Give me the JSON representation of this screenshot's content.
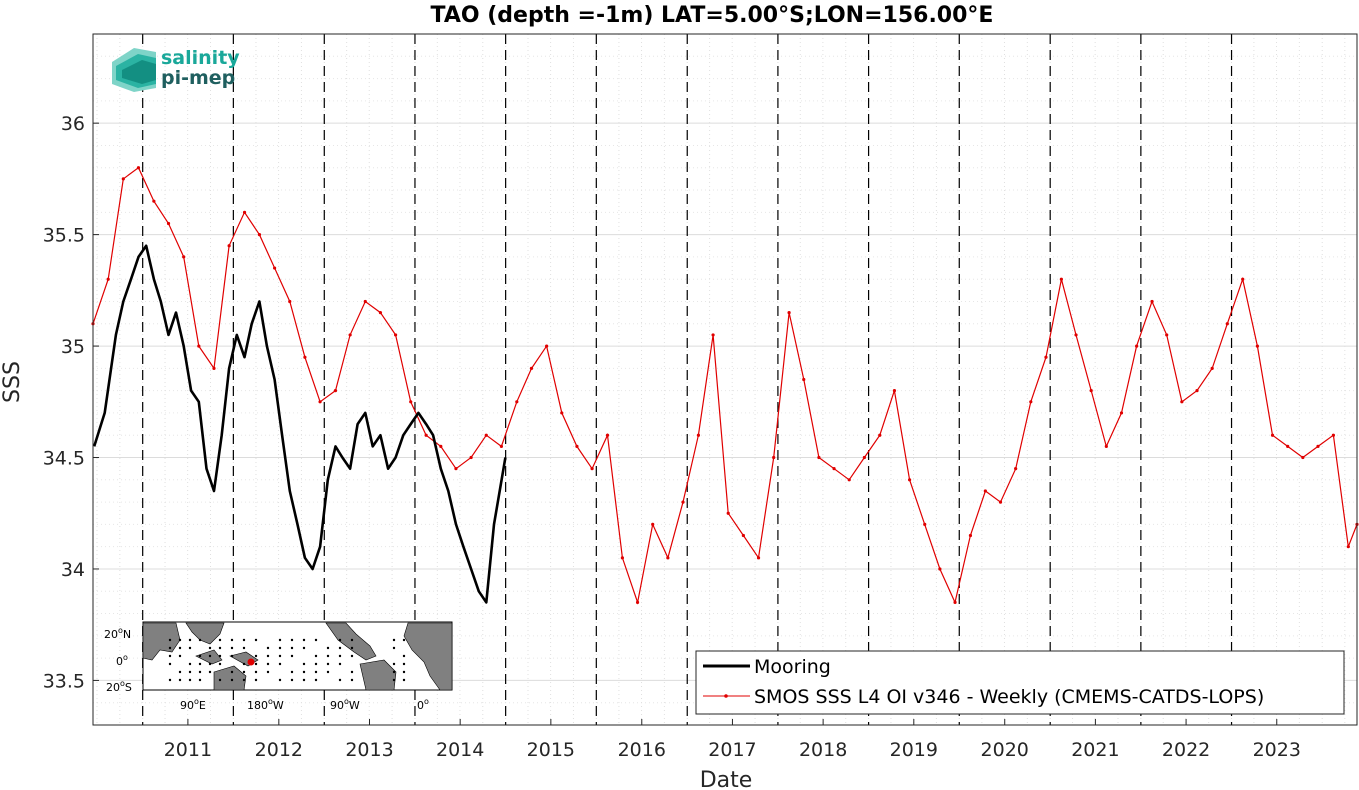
{
  "chart_data": {
    "type": "line",
    "title": "TAO (depth =-1m) LAT=5.00°S;LON=156.00°E",
    "xlabel": "Date",
    "ylabel": "SSS",
    "xlim": [
      "2010-06-15",
      "2024-05-20"
    ],
    "ylim": [
      33.3,
      36.4
    ],
    "x_ticks": [
      "2011",
      "2012",
      "2013",
      "2014",
      "2015",
      "2016",
      "2017",
      "2018",
      "2019",
      "2020",
      "2021",
      "2022",
      "2023"
    ],
    "y_ticks": [
      "33.5",
      "34",
      "34.5",
      "35",
      "35.5",
      "36"
    ],
    "year_boundaries": [
      "2011-01-01",
      "2012-01-01",
      "2013-01-01",
      "2014-01-01",
      "2015-01-01",
      "2016-01-01",
      "2017-01-01",
      "2018-01-01",
      "2019-01-01",
      "2020-01-01",
      "2021-01-01",
      "2022-01-01",
      "2023-01-01"
    ],
    "grid": true,
    "legend_position": "bottom-right",
    "series": [
      {
        "name": "Mooring",
        "color": "#000000",
        "x": [
          "2010-06-20",
          "2010-08-01",
          "2010-09-15",
          "2010-10-15",
          "2010-11-15",
          "2010-12-15",
          "2011-01-15",
          "2011-02-15",
          "2011-03-15",
          "2011-04-15",
          "2011-05-15",
          "2011-06-15",
          "2011-07-15",
          "2011-08-15",
          "2011-09-15",
          "2011-10-15",
          "2011-11-15",
          "2011-12-15",
          "2012-01-15",
          "2012-02-15",
          "2012-03-15",
          "2012-04-15",
          "2012-05-15",
          "2012-06-15",
          "2012-07-15",
          "2012-08-15",
          "2012-09-15",
          "2012-10-15",
          "2012-11-15",
          "2012-12-15",
          "2013-01-15",
          "2013-02-15",
          "2013-03-15",
          "2013-04-15",
          "2013-05-15",
          "2013-06-15",
          "2013-07-15",
          "2013-08-15",
          "2013-09-15",
          "2013-10-15",
          "2013-11-15",
          "2013-12-15",
          "2014-01-15",
          "2014-02-15",
          "2014-03-15",
          "2014-04-15",
          "2014-05-15",
          "2014-06-15",
          "2014-07-15",
          "2014-08-15",
          "2014-09-15",
          "2014-10-15",
          "2014-11-15",
          "2014-12-31"
        ],
        "y": [
          34.55,
          34.7,
          35.05,
          35.2,
          35.3,
          35.4,
          35.45,
          35.3,
          35.2,
          35.05,
          35.15,
          35.0,
          34.8,
          34.75,
          34.45,
          34.35,
          34.6,
          34.9,
          35.05,
          34.95,
          35.1,
          35.2,
          35.0,
          34.85,
          34.6,
          34.35,
          34.2,
          34.05,
          34.0,
          34.1,
          34.4,
          34.55,
          34.5,
          34.45,
          34.65,
          34.7,
          34.55,
          34.6,
          34.45,
          34.5,
          34.6,
          34.65,
          34.7,
          34.65,
          34.6,
          34.45,
          34.35,
          34.2,
          34.1,
          34.0,
          33.9,
          33.85,
          34.2,
          34.5
        ]
      },
      {
        "name": "SMOS SSS L4 OI v346 - Weekly (CMEMS-CATDS-LOPS)",
        "color": "#e00000",
        "x": [
          "2010-06-15",
          "2010-08-15",
          "2010-10-15",
          "2010-12-15",
          "2011-02-15",
          "2011-04-15",
          "2011-06-15",
          "2011-08-15",
          "2011-10-15",
          "2011-12-15",
          "2012-02-15",
          "2012-04-15",
          "2012-06-15",
          "2012-08-15",
          "2012-10-15",
          "2012-12-15",
          "2013-02-15",
          "2013-04-15",
          "2013-06-15",
          "2013-08-15",
          "2013-10-15",
          "2013-12-15",
          "2014-02-15",
          "2014-04-15",
          "2014-06-15",
          "2014-08-15",
          "2014-10-15",
          "2014-12-15",
          "2015-02-15",
          "2015-04-15",
          "2015-06-15",
          "2015-08-15",
          "2015-10-15",
          "2015-12-15",
          "2016-02-15",
          "2016-04-15",
          "2016-06-15",
          "2016-08-15",
          "2016-10-15",
          "2016-12-15",
          "2017-02-15",
          "2017-04-15",
          "2017-06-15",
          "2017-08-15",
          "2017-10-15",
          "2017-12-15",
          "2018-02-15",
          "2018-04-15",
          "2018-06-15",
          "2018-08-15",
          "2018-10-15",
          "2018-12-15",
          "2019-02-15",
          "2019-04-15",
          "2019-06-15",
          "2019-08-15",
          "2019-10-15",
          "2019-12-15",
          "2020-02-15",
          "2020-04-15",
          "2020-06-15",
          "2020-08-15",
          "2020-10-15",
          "2020-12-15",
          "2021-02-15",
          "2021-04-15",
          "2021-06-15",
          "2021-08-15",
          "2021-10-15",
          "2021-12-15",
          "2022-02-15",
          "2022-04-15",
          "2022-06-15",
          "2022-08-15",
          "2022-10-15",
          "2022-12-15",
          "2023-02-15",
          "2023-04-15",
          "2023-06-15",
          "2023-08-15",
          "2023-10-15",
          "2023-12-15",
          "2024-02-15",
          "2024-04-15",
          "2024-05-20"
        ],
        "y": [
          35.1,
          35.3,
          35.75,
          35.8,
          35.65,
          35.55,
          35.4,
          35.0,
          34.9,
          35.45,
          35.6,
          35.5,
          35.35,
          35.2,
          34.95,
          34.75,
          34.8,
          35.05,
          35.2,
          35.15,
          35.05,
          34.75,
          34.6,
          34.55,
          34.45,
          34.5,
          34.6,
          34.55,
          34.75,
          34.9,
          35.0,
          34.7,
          34.55,
          34.45,
          34.6,
          34.05,
          33.85,
          34.2,
          34.05,
          34.3,
          34.6,
          35.05,
          34.25,
          34.15,
          34.05,
          34.5,
          35.15,
          34.85,
          34.5,
          34.45,
          34.4,
          34.5,
          34.6,
          34.8,
          34.4,
          34.2,
          34.0,
          33.85,
          34.15,
          34.35,
          34.3,
          34.45,
          34.75,
          34.95,
          35.3,
          35.05,
          34.8,
          34.55,
          34.7,
          35.0,
          35.2,
          35.05,
          34.75,
          34.8,
          34.9,
          35.1,
          35.3,
          35.0,
          34.6,
          34.55,
          34.5,
          34.55,
          34.6,
          34.1,
          34.2
        ]
      }
    ]
  },
  "logo": {
    "line1": "salinity",
    "line2": "pi-mep"
  },
  "inset_map": {
    "lat_labels": [
      "20",
      "N",
      "0",
      "20",
      "S"
    ],
    "lon_labels": [
      "90",
      "E",
      "180",
      "W",
      "90",
      "W",
      "0"
    ],
    "degree_mark": "o",
    "marker_color": "#e00000"
  },
  "colors": {
    "mooring": "#000000",
    "smos": "#e00000",
    "grid": "#c8c8c8",
    "year_line": "#000000",
    "land": "#808080",
    "logo_teal": "#1aa89a",
    "logo_dark": "#1f5f5f"
  }
}
